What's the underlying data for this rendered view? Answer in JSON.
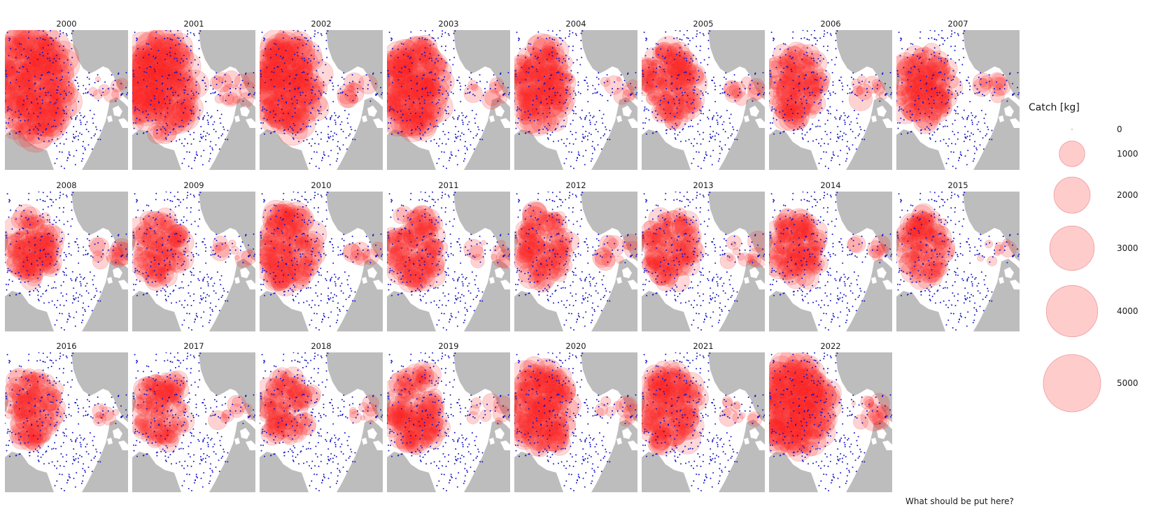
{
  "colors": {
    "land": "#bdbdbd",
    "sea": "#ffffff",
    "station": "#1515c8",
    "bubble_fill": "#ff2020",
    "bubble_stroke": "#e06060",
    "legend_fill": "#ffcccc",
    "legend_stroke": "#ee9a9a"
  },
  "icons": {
    "station": "dot-marker",
    "catch": "circle-bubble"
  },
  "panels": [
    {
      "year": "2000",
      "intensity": 1.0,
      "extent": 0.95,
      "east": 0.25
    },
    {
      "year": "2001",
      "intensity": 0.95,
      "extent": 0.9,
      "east": 0.7
    },
    {
      "year": "2002",
      "intensity": 0.9,
      "extent": 0.85,
      "east": 0.45
    },
    {
      "year": "2003",
      "intensity": 0.82,
      "extent": 0.8,
      "east": 0.4
    },
    {
      "year": "2004",
      "intensity": 0.72,
      "extent": 0.72,
      "east": 0.35
    },
    {
      "year": "2005",
      "intensity": 0.6,
      "extent": 0.65,
      "east": 0.45
    },
    {
      "year": "2006",
      "intensity": 0.6,
      "extent": 0.62,
      "east": 0.55
    },
    {
      "year": "2007",
      "intensity": 0.6,
      "extent": 0.62,
      "east": 0.4
    },
    {
      "year": "2008",
      "intensity": 0.45,
      "extent": 0.55,
      "east": 0.6
    },
    {
      "year": "2009",
      "intensity": 0.42,
      "extent": 0.55,
      "east": 0.45
    },
    {
      "year": "2010",
      "intensity": 0.65,
      "extent": 0.65,
      "east": 0.35
    },
    {
      "year": "2011",
      "intensity": 0.55,
      "extent": 0.62,
      "east": 0.5
    },
    {
      "year": "2012",
      "intensity": 0.5,
      "extent": 0.62,
      "east": 0.55
    },
    {
      "year": "2013",
      "intensity": 0.45,
      "extent": 0.58,
      "east": 0.55
    },
    {
      "year": "2014",
      "intensity": 0.48,
      "extent": 0.58,
      "east": 0.5
    },
    {
      "year": "2015",
      "intensity": 0.42,
      "extent": 0.55,
      "east": 0.3
    },
    {
      "year": "2016",
      "intensity": 0.45,
      "extent": 0.58,
      "east": 0.35
    },
    {
      "year": "2017",
      "intensity": 0.38,
      "extent": 0.58,
      "east": 0.35
    },
    {
      "year": "2018",
      "intensity": 0.38,
      "extent": 0.55,
      "east": 0.25
    },
    {
      "year": "2019",
      "intensity": 0.55,
      "extent": 0.7,
      "east": 0.3
    },
    {
      "year": "2020",
      "intensity": 0.8,
      "extent": 0.78,
      "east": 0.5
    },
    {
      "year": "2021",
      "intensity": 0.65,
      "extent": 0.72,
      "east": 0.45
    },
    {
      "year": "2022",
      "intensity": 0.95,
      "extent": 0.85,
      "east": 0.75
    }
  ],
  "legend": {
    "title": "Catch [kg]",
    "entries": [
      {
        "label": "0",
        "value": 0
      },
      {
        "label": "1000",
        "value": 1000
      },
      {
        "label": "2000",
        "value": 2000
      },
      {
        "label": "3000",
        "value": 3000
      },
      {
        "label": "4000",
        "value": 4000
      },
      {
        "label": "5000",
        "value": 5000
      }
    ]
  },
  "caption": "What should be put here?"
}
